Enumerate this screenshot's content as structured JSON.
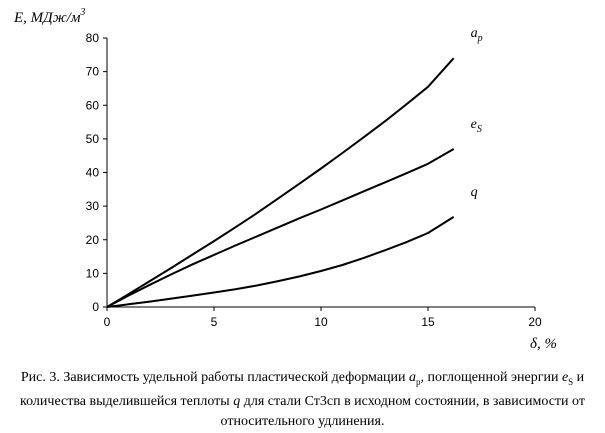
{
  "chart_data": {
    "type": "line",
    "ylabel": "E, МДж/м",
    "ylabel_sup": "3",
    "xlabel": "δ, %",
    "xlim": [
      0,
      20
    ],
    "ylim": [
      0,
      80
    ],
    "xticks": [
      0,
      5,
      10,
      15,
      20
    ],
    "yticks": [
      0,
      10,
      20,
      30,
      40,
      50,
      60,
      70,
      80
    ],
    "grid": false,
    "series": [
      {
        "name": "a",
        "name_sub": "p",
        "x": [
          0,
          1,
          2,
          3,
          4,
          5,
          6,
          7,
          8,
          9,
          10,
          11,
          12,
          13,
          14,
          15,
          16.2
        ],
        "y": [
          0,
          3.8,
          7.7,
          11.6,
          15.6,
          19.6,
          23.7,
          27.9,
          32.3,
          36.7,
          41.2,
          45.8,
          50.5,
          55.3,
          60.3,
          65.5,
          74
        ]
      },
      {
        "name": "e",
        "name_sub": "S",
        "x": [
          0,
          1,
          2,
          3,
          4,
          5,
          6,
          7,
          8,
          9,
          10,
          11,
          12,
          13,
          14,
          15,
          16.2
        ],
        "y": [
          0,
          3.4,
          6.6,
          9.7,
          12.7,
          15.5,
          18.3,
          21,
          23.7,
          26.4,
          29,
          31.7,
          34.4,
          37.1,
          39.8,
          42.6,
          47
        ]
      },
      {
        "name": "q",
        "name_sub": "",
        "x": [
          0,
          1,
          2,
          3,
          4,
          5,
          6,
          7,
          8,
          9,
          10,
          11,
          12,
          13,
          14,
          15,
          16.2
        ],
        "y": [
          0,
          0.8,
          1.6,
          2.5,
          3.4,
          4.3,
          5.3,
          6.4,
          7.7,
          9.1,
          10.7,
          12.5,
          14.6,
          16.9,
          19.3,
          22,
          26.8
        ]
      }
    ]
  },
  "caption": {
    "p1": "Рис. 3. Зависимость удельной работы пластической деформации ",
    "sym_a": "a",
    "sym_a_sub": "p",
    "p2": ", поглощенной энергии ",
    "sym_e": "e",
    "sym_e_sub": "S",
    "p3": " и количества выделившейся теплоты ",
    "sym_q": "q",
    "p4": " для стали Ст3сп в исходном состоянии, в зависимости от относительного удлинения."
  }
}
